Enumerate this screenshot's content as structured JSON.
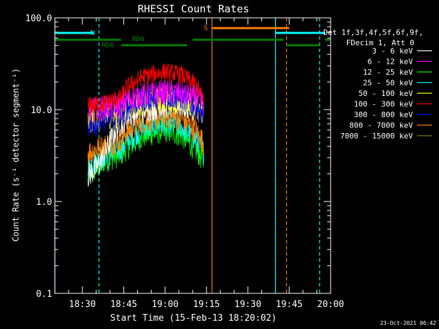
{
  "chart_data": {
    "type": "line",
    "title": "RHESSI Count Rates",
    "xlabel": "Start Time (15-Feb-13 18:20:02)",
    "ylabel": "Count Rate (s⁻¹ detector segment⁻¹)",
    "y_scale": "log",
    "ylim": [
      0.1,
      100.0
    ],
    "xlim": [
      "18:20:02",
      "20:00:00"
    ],
    "x_ticks": [
      "18:30",
      "18:45",
      "19:00",
      "19:15",
      "19:30",
      "19:45",
      "20:00"
    ],
    "y_ticks": [
      "0.1",
      "1.0",
      "10.0",
      "100.0"
    ],
    "legend_header": [
      "Det 1f,3f,4f,5f,6f,9f,",
      "FDecim 1, Att 0"
    ],
    "legend_position": "right",
    "timestamp": "23-Oct-2021 06:42",
    "series": [
      {
        "name": "3 - 6 keV",
        "color": "#ffffff",
        "points": [
          [
            "18:32",
            1.9
          ],
          [
            "18:36",
            2.5
          ],
          [
            "18:42",
            6.0
          ],
          [
            "18:47",
            8.8
          ],
          [
            "18:52",
            10.0
          ],
          [
            "19:00",
            11.0
          ],
          [
            "19:05",
            11.3
          ],
          [
            "19:10",
            10.4
          ],
          [
            "19:14",
            9.6
          ]
        ]
      },
      {
        "name": "6 - 12 keV",
        "color": "#ff00ff",
        "points": [
          [
            "18:32",
            9.5
          ],
          [
            "18:38",
            10.5
          ],
          [
            "18:44",
            11.0
          ],
          [
            "18:46",
            13.0
          ],
          [
            "18:52",
            14.5
          ],
          [
            "19:00",
            15.5
          ],
          [
            "19:06",
            15.0
          ],
          [
            "19:11",
            13.5
          ],
          [
            "19:14",
            11.8
          ]
        ]
      },
      {
        "name": "12 - 25 keV",
        "color": "#00ff00",
        "points": [
          [
            "18:32",
            1.9
          ],
          [
            "18:38",
            2.8
          ],
          [
            "18:44",
            3.3
          ],
          [
            "18:46",
            3.8
          ],
          [
            "18:52",
            5.2
          ],
          [
            "19:00",
            6.0
          ],
          [
            "19:06",
            5.3
          ],
          [
            "19:11",
            3.7
          ],
          [
            "19:14",
            2.8
          ]
        ]
      },
      {
        "name": "25 - 50 keV",
        "color": "#00ffff",
        "points": [
          [
            "18:32",
            2.5
          ],
          [
            "18:38",
            3.2
          ],
          [
            "18:44",
            3.8
          ],
          [
            "18:46",
            4.6
          ],
          [
            "18:52",
            6.4
          ],
          [
            "19:00",
            7.0
          ],
          [
            "19:06",
            6.5
          ],
          [
            "19:11",
            4.8
          ],
          [
            "19:14",
            3.4
          ]
        ]
      },
      {
        "name": "50 - 100 keV",
        "color": "#ffff00",
        "points": [
          [
            "18:32",
            7.5
          ],
          [
            "18:38",
            8.3
          ],
          [
            "18:44",
            9.0
          ],
          [
            "18:46",
            10.5
          ],
          [
            "18:52",
            12.0
          ],
          [
            "19:00",
            12.8
          ],
          [
            "19:06",
            12.2
          ],
          [
            "19:11",
            10.8
          ],
          [
            "19:14",
            9.5
          ]
        ]
      },
      {
        "name": "100 - 300 keV",
        "color": "#ff0000",
        "points": [
          [
            "18:32",
            11.0
          ],
          [
            "18:38",
            11.8
          ],
          [
            "18:44",
            13.5
          ],
          [
            "18:46",
            17.5
          ],
          [
            "18:52",
            23.0
          ],
          [
            "19:00",
            26.0
          ],
          [
            "19:06",
            24.0
          ],
          [
            "19:11",
            19.0
          ],
          [
            "19:14",
            13.0
          ]
        ]
      },
      {
        "name": "300 - 800 keV",
        "color": "#0000ff",
        "points": [
          [
            "18:32",
            6.8
          ],
          [
            "18:38",
            7.8
          ],
          [
            "18:44",
            8.8
          ],
          [
            "18:46",
            10.5
          ],
          [
            "18:52",
            12.8
          ],
          [
            "19:00",
            14.0
          ],
          [
            "19:06",
            13.5
          ],
          [
            "19:11",
            11.0
          ],
          [
            "19:14",
            8.8
          ]
        ]
      },
      {
        "name": "800 - 7000 keV",
        "color": "#ff8000",
        "points": [
          [
            "18:32",
            3.4
          ],
          [
            "18:38",
            4.0
          ],
          [
            "18:44",
            4.7
          ],
          [
            "18:46",
            5.8
          ],
          [
            "18:52",
            7.5
          ],
          [
            "19:00",
            8.5
          ],
          [
            "19:06",
            8.0
          ],
          [
            "19:11",
            6.0
          ],
          [
            "19:14",
            4.3
          ]
        ]
      },
      {
        "name": "7000 - 15000 keV",
        "color": "#808000",
        "points": []
      }
    ],
    "annotations": {
      "flags": [
        {
          "label": "N",
          "color": "#00ffff",
          "segments": [
            [
              "18:20:02",
              "18:34"
            ],
            [
              "19:40",
              "19:58"
            ]
          ]
        },
        {
          "label": "S",
          "color": "#ff8000",
          "segments": [
            [
              "19:17",
              "19:45"
            ]
          ]
        },
        {
          "label": "RD0",
          "color": "#008000",
          "segments": [
            [
              "18:20:02",
              "18:44"
            ],
            [
              "19:10",
              "19:43"
            ],
            [
              "19:58",
              "20:00"
            ]
          ]
        },
        {
          "label": "RD6",
          "color": "#008000",
          "segments": [
            [
              "18:44",
              "19:08"
            ],
            [
              "19:44",
              "19:56"
            ]
          ]
        }
      ],
      "vertical_lines": [
        {
          "time": "18:20:02",
          "color": "#00ffff",
          "style": "solid"
        },
        {
          "time": "18:36",
          "color": "#00ffff",
          "style": "dashed"
        },
        {
          "time": "19:17",
          "color": "#ff8000",
          "style": "solid"
        },
        {
          "time": "19:40",
          "color": "#00ffff",
          "style": "solid"
        },
        {
          "time": "19:44",
          "color": "#ff8000",
          "style": "dashed"
        },
        {
          "time": "19:56",
          "color": "#00ffff",
          "style": "dashed"
        }
      ]
    }
  }
}
